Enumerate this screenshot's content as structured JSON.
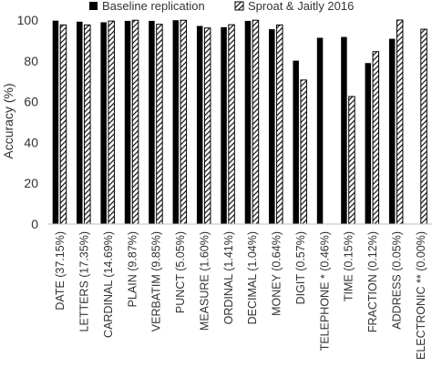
{
  "chart_data": {
    "type": "bar",
    "title": "",
    "xlabel": "",
    "ylabel": "Accuracy (%)",
    "ylim": [
      0,
      100
    ],
    "yticks": [
      0,
      20,
      40,
      60,
      80,
      100
    ],
    "grid": false,
    "legend_position": "top",
    "categories": [
      "DATE (37.15%)",
      "LETTERS (17.35%)",
      "CARDINAL (14.69%)",
      "PLAIN (9.87%)",
      "VERBATIM (9.85%)",
      "PUNCT (5.05%)",
      "MEASURE (1.60%)",
      "ORDINAL (1.41%)",
      "DECIMAL (1.04%)",
      "MONEY (0.64%)",
      "DIGIT (0.57%)",
      "TELEPHONE * (0.46%)",
      "TIME (0.15%)",
      "FRACTION (0.12%)",
      "ADDRESS (0.05%)",
      "ELECTRONIC ** (0.00%)"
    ],
    "series": [
      {
        "name": "Baseline replication",
        "color": "#000000",
        "pattern": "solid",
        "values": [
          99.7,
          99.2,
          98.9,
          99.6,
          99.6,
          99.9,
          97.1,
          96.5,
          99.6,
          95.5,
          80.1,
          91.3,
          91.7,
          78.9,
          90.8,
          null
        ]
      },
      {
        "name": "Sproat & Jaitly 2016",
        "color": "#000000",
        "pattern": "diagonal-hatch",
        "values": [
          97.6,
          97.6,
          99.5,
          99.9,
          97.9,
          99.9,
          96.1,
          97.7,
          99.9,
          97.6,
          70.6,
          null,
          62.5,
          84.5,
          100,
          95.5
        ]
      }
    ]
  }
}
